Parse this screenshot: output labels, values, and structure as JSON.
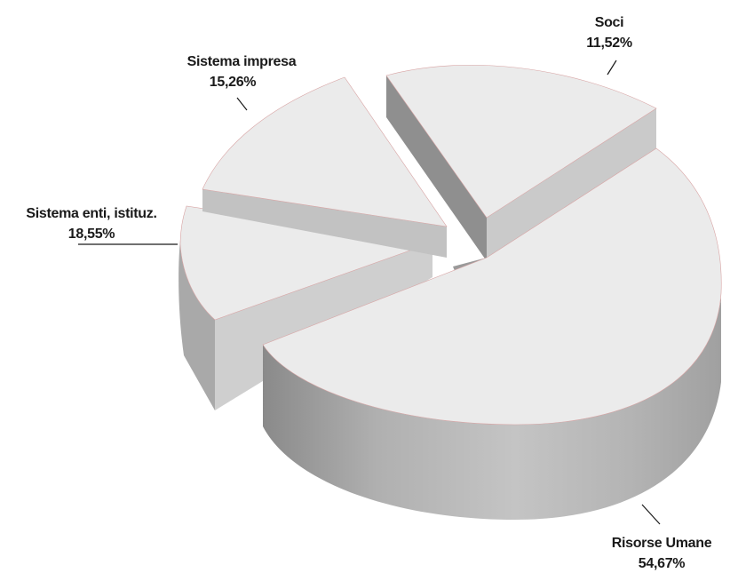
{
  "chart_data": {
    "type": "pie",
    "style": "3d-exploded",
    "slices": [
      {
        "label": "Soci",
        "value": 11.52,
        "value_label": "11,52%"
      },
      {
        "label": "Risorse Umane",
        "value": 54.67,
        "value_label": "54,67%"
      },
      {
        "label": "Sistema enti, istituz.",
        "value": 18.55,
        "value_label": "18,55%"
      },
      {
        "label": "Sistema impresa",
        "value": 15.26,
        "value_label": "15,26%"
      }
    ],
    "colors": {
      "top": "#ebebeb",
      "side": "#b9b9b9",
      "side_dark": "#8f8f8f",
      "edge": "#d9a0a0"
    }
  }
}
